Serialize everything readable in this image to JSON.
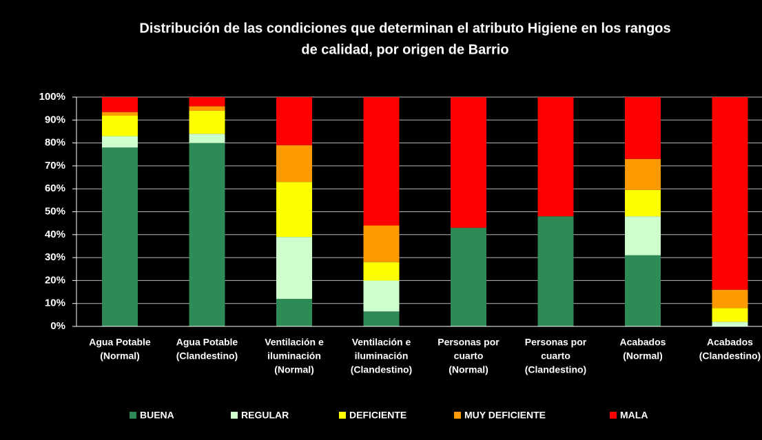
{
  "chart_data": {
    "type": "bar",
    "stacked": true,
    "title": [
      "Distribución de las condiciones que determinan el atributo Higiene en los rangos",
      "de calidad, por origen de Barrio"
    ],
    "categories": [
      [
        "Agua Potable",
        "(Normal)"
      ],
      [
        "Agua Potable",
        "(Clandestino)"
      ],
      [
        "Ventilación e",
        "iluminación",
        "(Normal)"
      ],
      [
        "Ventilación e",
        "iluminación",
        "(Clandestino)"
      ],
      [
        "Personas por",
        "cuarto",
        "(Normal)"
      ],
      [
        "Personas por",
        "cuarto",
        "(Clandestino)"
      ],
      [
        "Acabados",
        "(Normal)"
      ],
      [
        "Acabados",
        "(Clandestino)"
      ]
    ],
    "series": [
      {
        "name": "BUENA",
        "color": "#2e8b57",
        "values": [
          78,
          80,
          12,
          6.5,
          43,
          48,
          31,
          0
        ]
      },
      {
        "name": "REGULAR",
        "color": "#ccffcc",
        "values": [
          5,
          4,
          27,
          13.5,
          0,
          0,
          17,
          2
        ]
      },
      {
        "name": "DEFICIENTE",
        "color": "#ffff00",
        "values": [
          9,
          10,
          24,
          8,
          0,
          0,
          11.5,
          6
        ]
      },
      {
        "name": "MUY DEFICIENTE",
        "color": "#ff9900",
        "values": [
          1.5,
          2,
          16,
          16,
          0,
          0,
          13.5,
          8
        ]
      },
      {
        "name": "MALA",
        "color": "#ff0000",
        "values": [
          6.5,
          4,
          21,
          56,
          57,
          52,
          27,
          84
        ]
      }
    ],
    "ylim": [
      0,
      100
    ],
    "yticks": [
      {
        "value": 0,
        "label": "0%"
      },
      {
        "value": 10,
        "label": "10%"
      },
      {
        "value": 20,
        "label": "20%"
      },
      {
        "value": 30,
        "label": "30%"
      },
      {
        "value": 40,
        "label": "40%"
      },
      {
        "value": 50,
        "label": "50%"
      },
      {
        "value": 60,
        "label": "60%"
      },
      {
        "value": 70,
        "label": "70%"
      },
      {
        "value": 80,
        "label": "80%"
      },
      {
        "value": 90,
        "label": "90%"
      },
      {
        "value": 100,
        "label": "100%"
      }
    ],
    "grid": true,
    "legend": "bottom"
  }
}
